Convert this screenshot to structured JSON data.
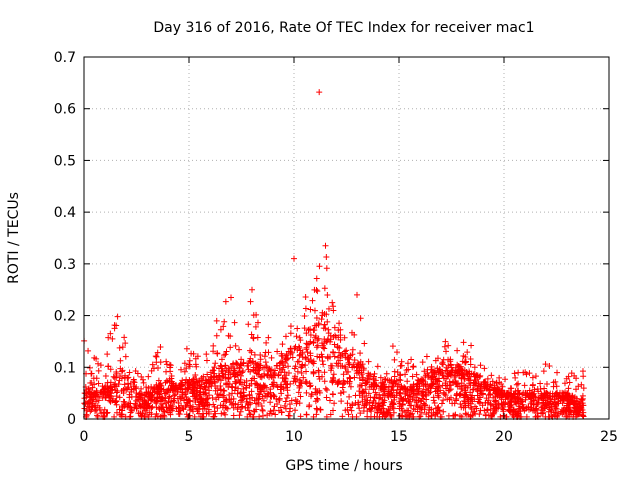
{
  "chart_data": {
    "type": "scatter",
    "title": "Day 316 of 2016, Rate Of TEC Index for receiver mac1",
    "xlabel": "GPS time / hours",
    "ylabel": "ROTI / TECUs",
    "xlim": [
      0,
      25
    ],
    "ylim": [
      0,
      0.7
    ],
    "xticks": [
      0,
      5,
      10,
      15,
      20,
      25
    ],
    "yticks": [
      0,
      0.1,
      0.2,
      0.3,
      0.4,
      0.5,
      0.6,
      0.7
    ],
    "xtick_labels": [
      "0",
      "5",
      "10",
      "15",
      "20",
      "25"
    ],
    "ytick_labels": [
      "0",
      "0.1",
      "0.2",
      "0.3",
      "0.4",
      "0.5",
      "0.6",
      "0.7"
    ],
    "grid": true,
    "marker": "plus",
    "color": "#ff0000",
    "x_range_observed": [
      0,
      23.8
    ],
    "envelope": {
      "x": [
        0,
        0.5,
        1,
        1.5,
        2,
        2.5,
        3,
        3.5,
        4,
        4.5,
        5,
        5.5,
        6,
        6.5,
        7,
        7.5,
        8,
        8.5,
        9,
        9.5,
        10,
        10.5,
        11,
        11.5,
        12,
        12.5,
        13,
        13.5,
        14,
        14.5,
        15,
        15.5,
        16,
        16.5,
        17,
        17.5,
        18,
        18.5,
        19,
        19.5,
        20,
        20.5,
        21,
        21.5,
        22,
        22.5,
        23,
        23.5
      ],
      "typical": [
        0.05,
        0.04,
        0.05,
        0.07,
        0.08,
        0.05,
        0.04,
        0.05,
        0.06,
        0.05,
        0.06,
        0.06,
        0.07,
        0.08,
        0.08,
        0.09,
        0.09,
        0.08,
        0.08,
        0.1,
        0.12,
        0.13,
        0.15,
        0.16,
        0.13,
        0.11,
        0.09,
        0.07,
        0.06,
        0.06,
        0.06,
        0.05,
        0.06,
        0.07,
        0.08,
        0.09,
        0.08,
        0.07,
        0.06,
        0.05,
        0.04,
        0.04,
        0.04,
        0.04,
        0.04,
        0.04,
        0.04,
        0.03
      ],
      "peak": [
        0.16,
        0.12,
        0.14,
        0.2,
        0.15,
        0.09,
        0.08,
        0.16,
        0.12,
        0.1,
        0.15,
        0.12,
        0.13,
        0.23,
        0.24,
        0.14,
        0.25,
        0.19,
        0.14,
        0.16,
        0.31,
        0.23,
        0.29,
        0.34,
        0.2,
        0.2,
        0.24,
        0.13,
        0.12,
        0.14,
        0.15,
        0.12,
        0.11,
        0.13,
        0.16,
        0.14,
        0.15,
        0.15,
        0.12,
        0.08,
        0.08,
        0.09,
        0.1,
        0.1,
        0.11,
        0.1,
        0.08,
        0.1
      ]
    },
    "outliers": [
      {
        "x": 11.2,
        "y": 0.632
      },
      {
        "x": 10.0,
        "y": 0.31
      },
      {
        "x": 11.5,
        "y": 0.335
      },
      {
        "x": 8.0,
        "y": 0.25
      },
      {
        "x": 7.0,
        "y": 0.235
      },
      {
        "x": 1.6,
        "y": 0.198
      },
      {
        "x": 13.0,
        "y": 0.24
      }
    ]
  }
}
